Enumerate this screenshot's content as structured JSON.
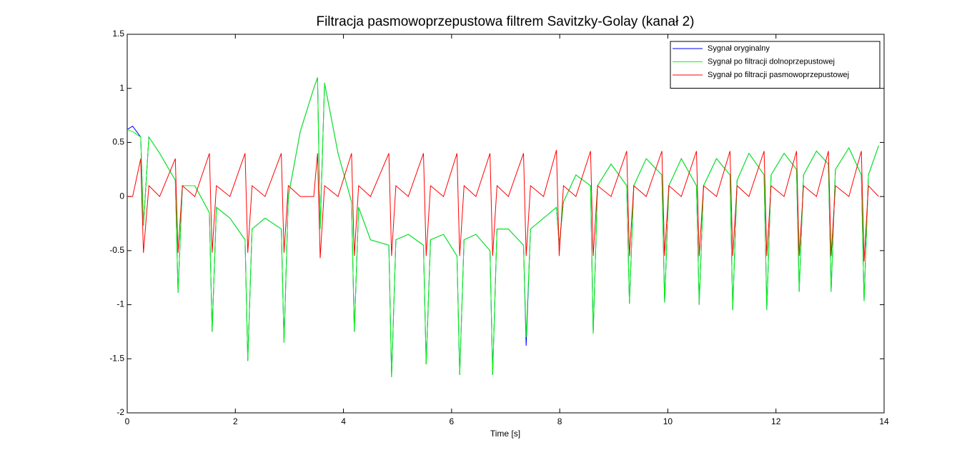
{
  "chart_data": {
    "type": "line",
    "title": "Filtracja pasmowoprzepustowa filtrem Savitzky-Golay (kanał 2)",
    "x_label": "Time [s]",
    "x": [
      0,
      0.1,
      0.25,
      0.3,
      0.4,
      0.6,
      0.89,
      0.94,
      1.02,
      1.25,
      1.52,
      1.57,
      1.65,
      1.9,
      2.18,
      2.23,
      2.31,
      2.55,
      2.85,
      2.9,
      2.98,
      3.2,
      3.45,
      3.52,
      3.57,
      3.65,
      3.9,
      4.15,
      4.2,
      4.28,
      4.5,
      4.84,
      4.89,
      4.97,
      5.2,
      5.48,
      5.53,
      5.61,
      5.85,
      6.1,
      6.15,
      6.23,
      6.45,
      6.71,
      6.76,
      6.84,
      7.05,
      7.33,
      7.38,
      7.46,
      7.7,
      7.94,
      7.99,
      8.07,
      8.3,
      8.57,
      8.62,
      8.7,
      8.95,
      9.24,
      9.29,
      9.37,
      9.6,
      9.89,
      9.94,
      10.02,
      10.25,
      10.53,
      10.58,
      10.66,
      10.9,
      11.15,
      11.2,
      11.28,
      11.5,
      11.78,
      11.83,
      11.91,
      12.15,
      12.38,
      12.43,
      12.51,
      12.75,
      12.97,
      13.02,
      13.1,
      13.35,
      13.58,
      13.63,
      13.71,
      13.9
    ],
    "series": [
      {
        "name": "Sygnał oryginalny",
        "color": "#0000ff",
        "values": [
          0.62,
          0.65,
          0.55,
          -0.27,
          0.55,
          0.4,
          0.15,
          -0.89,
          0.1,
          0.1,
          -0.15,
          -1.25,
          -0.1,
          -0.2,
          -0.4,
          -1.52,
          -0.3,
          -0.2,
          -0.3,
          -1.35,
          0.0,
          0.6,
          1.0,
          1.1,
          -0.3,
          1.05,
          0.4,
          -0.05,
          -1.25,
          -0.1,
          -0.4,
          -0.45,
          -1.67,
          -0.4,
          -0.35,
          -0.45,
          -1.55,
          -0.4,
          -0.35,
          -0.55,
          -1.65,
          -0.4,
          -0.35,
          -0.5,
          -1.65,
          -0.3,
          -0.3,
          -0.45,
          -1.38,
          -0.3,
          -0.2,
          -0.1,
          -0.45,
          -0.05,
          0.2,
          0.1,
          -1.27,
          0.1,
          0.3,
          0.1,
          -0.99,
          0.1,
          0.35,
          0.2,
          -0.98,
          0.1,
          0.35,
          0.1,
          -1.0,
          0.1,
          0.35,
          0.2,
          -1.05,
          0.15,
          0.4,
          0.2,
          -1.05,
          0.2,
          0.4,
          0.25,
          -0.88,
          0.2,
          0.42,
          0.3,
          -0.88,
          0.25,
          0.45,
          0.2,
          -0.97,
          0.2,
          0.47
        ]
      },
      {
        "name": "Sygnał po filtracji dolnoprzepustowej",
        "color": "#00ff00",
        "values": [
          0.62,
          0.6,
          0.55,
          -0.27,
          0.55,
          0.4,
          0.15,
          -0.89,
          0.1,
          0.1,
          -0.15,
          -1.25,
          -0.1,
          -0.2,
          -0.4,
          -1.52,
          -0.3,
          -0.2,
          -0.3,
          -1.35,
          0.0,
          0.6,
          1.0,
          1.1,
          -0.3,
          1.05,
          0.4,
          -0.05,
          -1.25,
          -0.1,
          -0.4,
          -0.45,
          -1.67,
          -0.4,
          -0.35,
          -0.45,
          -1.55,
          -0.4,
          -0.35,
          -0.55,
          -1.65,
          -0.4,
          -0.35,
          -0.5,
          -1.65,
          -0.3,
          -0.3,
          -0.45,
          -1.3,
          -0.3,
          -0.2,
          -0.1,
          -0.45,
          -0.05,
          0.2,
          0.1,
          -1.27,
          0.1,
          0.3,
          0.1,
          -0.99,
          0.1,
          0.35,
          0.2,
          -0.98,
          0.1,
          0.35,
          0.1,
          -1.0,
          0.1,
          0.35,
          0.2,
          -1.05,
          0.15,
          0.4,
          0.2,
          -1.05,
          0.2,
          0.4,
          0.25,
          -0.88,
          0.2,
          0.42,
          0.3,
          -0.88,
          0.25,
          0.45,
          0.2,
          -0.97,
          0.2,
          0.47
        ]
      },
      {
        "name": "Sygnał po filtracji pasmowoprzepustowej",
        "color": "#ff0000",
        "values": [
          0,
          0,
          0.35,
          -0.52,
          0.1,
          0,
          0.35,
          -0.52,
          0.1,
          0,
          0.4,
          -0.52,
          0.1,
          0,
          0.4,
          -0.52,
          0.1,
          0,
          0.4,
          -0.52,
          0.1,
          0,
          0,
          0.4,
          -0.57,
          0.1,
          0,
          0.4,
          -0.55,
          0.1,
          0,
          0.4,
          -0.55,
          0.1,
          0,
          0.4,
          -0.55,
          0.1,
          0,
          0.4,
          -0.55,
          0.1,
          0,
          0.4,
          -0.55,
          0.1,
          0,
          0.4,
          -0.55,
          0.1,
          0,
          0.43,
          -0.55,
          0.1,
          0,
          0.42,
          -0.55,
          0.1,
          0,
          0.42,
          -0.55,
          0.1,
          0,
          0.42,
          -0.55,
          0.1,
          0,
          0.42,
          -0.55,
          0.1,
          0,
          0.42,
          -0.55,
          0.1,
          0,
          0.42,
          -0.55,
          0.1,
          0,
          0.42,
          -0.55,
          0.1,
          0,
          0.42,
          -0.55,
          0.1,
          0,
          0.42,
          -0.6,
          0.1,
          0
        ]
      }
    ],
    "xlim": [
      0,
      14
    ],
    "xticks": [
      0,
      2,
      4,
      6,
      8,
      10,
      12,
      14
    ],
    "ylim": [
      -2,
      1.5
    ],
    "yticks": [
      -2,
      -1.5,
      -1,
      -0.5,
      0,
      0.5,
      1,
      1.5
    ],
    "legend": "upper right"
  }
}
